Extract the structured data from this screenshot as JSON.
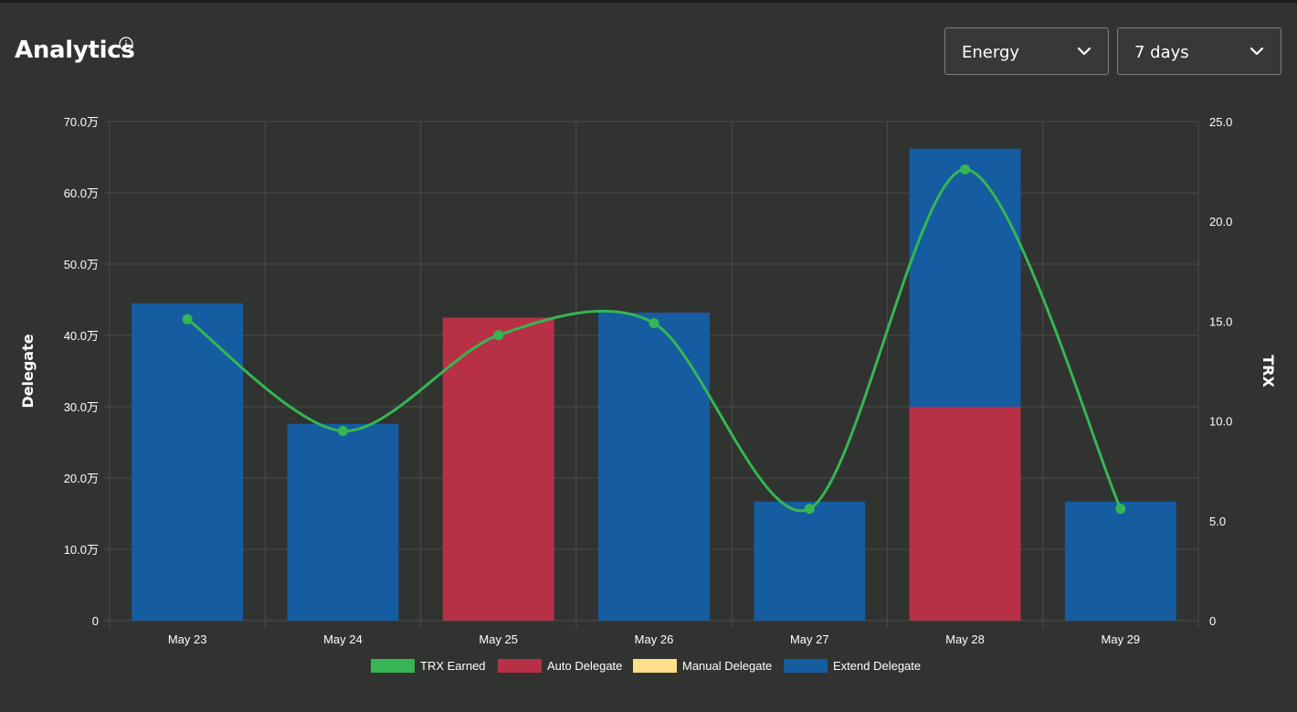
{
  "header": {
    "title": "Analytics",
    "info_icon": "info-circle-icon"
  },
  "filters": {
    "metric": {
      "selected": "Energy",
      "icon": "chevron-down-icon"
    },
    "range": {
      "selected": "7 days",
      "icon": "chevron-down-icon"
    }
  },
  "colors": {
    "background": "#303330",
    "grid": "#4a4d4a",
    "trx_earned": "#35b653",
    "auto_delegate": "#b83046",
    "manual_delegate": "#ffe08a",
    "extend_delegate": "#155ca1"
  },
  "chart_data": {
    "type": "bar",
    "stacked": true,
    "categories": [
      "May 23",
      "May 24",
      "May 25",
      "May 26",
      "May 27",
      "May 28",
      "May 29"
    ],
    "y_left": {
      "label": "Delegate",
      "range": [
        0,
        700000
      ],
      "ticks": [
        "0",
        "10.0万",
        "20.0万",
        "30.0万",
        "40.0万",
        "50.0万",
        "60.0万",
        "70.0万"
      ]
    },
    "y_right": {
      "label": "TRX",
      "range": [
        0,
        25
      ],
      "ticks": [
        "0",
        "5.0",
        "10.0",
        "15.0",
        "20.0",
        "25.0"
      ]
    },
    "series": [
      {
        "name": "TRX Earned",
        "type": "line",
        "axis": "right",
        "values": [
          15.1,
          9.5,
          14.3,
          14.9,
          5.6,
          22.6,
          5.6
        ]
      },
      {
        "name": "Auto Delegate",
        "type": "bar",
        "axis": "left",
        "values": [
          0,
          0,
          425000,
          0,
          0,
          300000,
          0
        ]
      },
      {
        "name": "Manual Delegate",
        "type": "bar",
        "axis": "left",
        "values": [
          0,
          0,
          0,
          0,
          0,
          0,
          0
        ]
      },
      {
        "name": "Extend Delegate",
        "type": "bar",
        "axis": "left",
        "values": [
          445000,
          276000,
          0,
          432000,
          167000,
          362000,
          167000
        ]
      }
    ],
    "grid": true,
    "legend_position": "bottom"
  }
}
